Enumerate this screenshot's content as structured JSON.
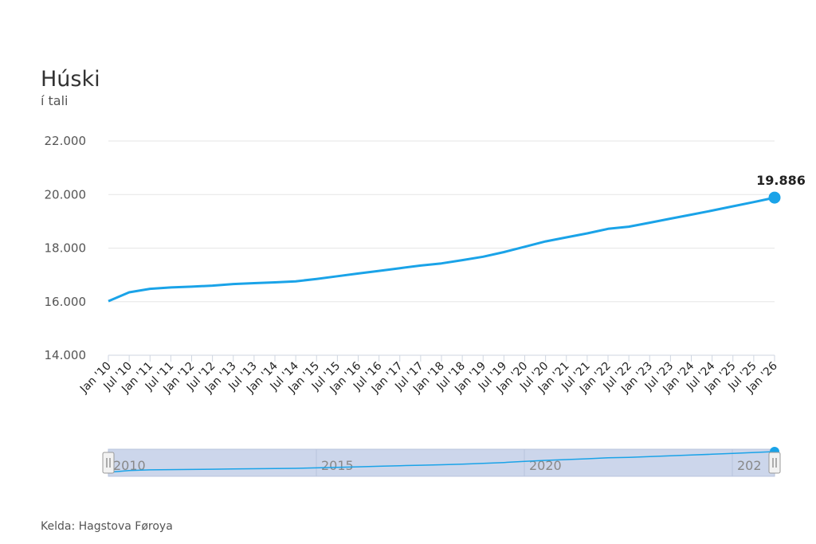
{
  "chart_data": {
    "type": "line",
    "title": "Húski",
    "subtitle": "í tali",
    "credit": "Kelda: Hagstova Føroya",
    "ylim": [
      14000,
      22000
    ],
    "y_ticks": [
      {
        "value": 14000,
        "label": "14.000"
      },
      {
        "value": 16000,
        "label": "16.000"
      },
      {
        "value": 18000,
        "label": "18.000"
      },
      {
        "value": 20000,
        "label": "20.000"
      },
      {
        "value": 22000,
        "label": "22.000"
      }
    ],
    "x_tick_labels": [
      "Jan '10",
      "Jul '10",
      "Jan '11",
      "Jul '11",
      "Jan '12",
      "Jul '12",
      "Jan '13",
      "Jul '13",
      "Jan '14",
      "Jul '14",
      "Jan '15",
      "Jul '15",
      "Jan '16",
      "Jul '16",
      "Jan '17",
      "Jul '17",
      "Jan '18",
      "Jul '18",
      "Jan '19",
      "Jul '19",
      "Jan '20",
      "Jul '20",
      "Jan '21",
      "Jul '21",
      "Jan '22",
      "Jul '22",
      "Jan '23",
      "Jul '23",
      "Jan '24",
      "Jul '24",
      "Jan '25",
      "Jul '25",
      "Jan '26"
    ],
    "grid": true,
    "series": [
      {
        "color": "#1aa3e8",
        "x": [
          "2010-01",
          "2010-07",
          "2011-01",
          "2011-07",
          "2012-01",
          "2012-07",
          "2013-01",
          "2013-07",
          "2014-01",
          "2014-07",
          "2015-01",
          "2015-07",
          "2016-01",
          "2016-07",
          "2017-01",
          "2017-07",
          "2018-01",
          "2018-07",
          "2019-01",
          "2019-07",
          "2020-01",
          "2020-07",
          "2021-01",
          "2021-07",
          "2022-01",
          "2022-07",
          "2023-01",
          "2023-07",
          "2024-01",
          "2024-07",
          "2025-01",
          "2025-07",
          "2026-01"
        ],
        "values": [
          16020,
          16350,
          16480,
          16530,
          16560,
          16600,
          16660,
          16690,
          16720,
          16760,
          16850,
          16950,
          17050,
          17150,
          17250,
          17350,
          17430,
          17550,
          17680,
          17850,
          18050,
          18250,
          18400,
          18550,
          18720,
          18800,
          18950,
          19100,
          19250,
          19400,
          19560,
          19720,
          19886
        ]
      }
    ],
    "last_point_label": "19.886",
    "navigator": {
      "labels": [
        "2010",
        "2015",
        "2020",
        "202"
      ]
    }
  }
}
